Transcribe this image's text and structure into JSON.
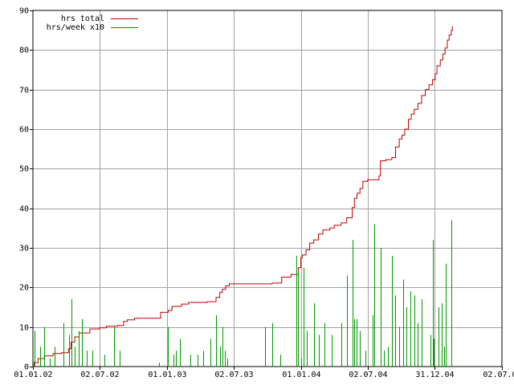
{
  "chart_data": {
    "type": "line",
    "title": "",
    "xlabel": "",
    "ylabel": "",
    "x_is_date": true,
    "x_tick_labels": [
      "01.01.02",
      "02.07.02",
      "01.01.03",
      "02.07.03",
      "01.01.04",
      "02.07.04",
      "31.12.04",
      "02.07.05"
    ],
    "x_tick_dates": [
      "2002-01-01",
      "2002-07-02",
      "2003-01-01",
      "2003-07-02",
      "2004-01-01",
      "2004-07-02",
      "2004-12-31",
      "2005-07-02"
    ],
    "xlim": [
      "2002-01-01",
      "2005-07-02"
    ],
    "ylim": [
      0,
      90
    ],
    "y_ticks": [
      0,
      10,
      20,
      30,
      40,
      50,
      60,
      70,
      80,
      90
    ],
    "grid": true,
    "legend_position": "top-left",
    "series": [
      {
        "name": "hrs total",
        "color": "#c00000",
        "style": "step",
        "points": [
          [
            "2002-01-01",
            0
          ],
          [
            "2002-01-04",
            1
          ],
          [
            "2002-01-15",
            2
          ],
          [
            "2002-02-01",
            2.7
          ],
          [
            "2002-02-25",
            3.3
          ],
          [
            "2002-03-20",
            3.5
          ],
          [
            "2002-04-08",
            4.5
          ],
          [
            "2002-04-15",
            6.2
          ],
          [
            "2002-04-25",
            7.5
          ],
          [
            "2002-05-07",
            8.5
          ],
          [
            "2002-06-05",
            9.5
          ],
          [
            "2002-07-01",
            9.8
          ],
          [
            "2002-07-20",
            10.2
          ],
          [
            "2002-08-20",
            10.4
          ],
          [
            "2002-09-05",
            11.4
          ],
          [
            "2002-09-15",
            11.8
          ],
          [
            "2002-10-05",
            12.2
          ],
          [
            "2002-12-15",
            13.7
          ],
          [
            "2003-01-05",
            14.2
          ],
          [
            "2003-01-15",
            15.2
          ],
          [
            "2003-02-10",
            15.8
          ],
          [
            "2003-03-01",
            16.2
          ],
          [
            "2003-04-20",
            16.4
          ],
          [
            "2003-05-15",
            17.5
          ],
          [
            "2003-05-25",
            18.7
          ],
          [
            "2003-06-01",
            19.5
          ],
          [
            "2003-06-10",
            20.4
          ],
          [
            "2003-06-20",
            20.9
          ],
          [
            "2003-10-15",
            21.1
          ],
          [
            "2003-11-10",
            22.6
          ],
          [
            "2003-12-05",
            23.3
          ],
          [
            "2003-12-25",
            25
          ],
          [
            "2004-01-01",
            27.5
          ],
          [
            "2004-01-05",
            28.2
          ],
          [
            "2004-01-15",
            29.5
          ],
          [
            "2004-01-25",
            31.2
          ],
          [
            "2004-02-05",
            32
          ],
          [
            "2004-02-18",
            33.5
          ],
          [
            "2004-03-01",
            34.5
          ],
          [
            "2004-03-20",
            35
          ],
          [
            "2004-04-01",
            35.7
          ],
          [
            "2004-04-20",
            36.3
          ],
          [
            "2004-05-05",
            37.6
          ],
          [
            "2004-05-20",
            40.2
          ],
          [
            "2004-05-26",
            42.5
          ],
          [
            "2004-06-02",
            43.8
          ],
          [
            "2004-06-10",
            45
          ],
          [
            "2004-06-18",
            46.8
          ],
          [
            "2004-07-01",
            47.2
          ],
          [
            "2004-08-01",
            48.2
          ],
          [
            "2004-08-05",
            52
          ],
          [
            "2004-08-20",
            52.3
          ],
          [
            "2004-09-05",
            52.8
          ],
          [
            "2004-09-15",
            55.5
          ],
          [
            "2004-09-25",
            57.5
          ],
          [
            "2004-10-03",
            58.5
          ],
          [
            "2004-10-10",
            60
          ],
          [
            "2004-10-20",
            62.5
          ],
          [
            "2004-10-28",
            63.8
          ],
          [
            "2004-11-05",
            65
          ],
          [
            "2004-11-15",
            66.5
          ],
          [
            "2004-11-25",
            68.5
          ],
          [
            "2004-12-05",
            70
          ],
          [
            "2004-12-15",
            71.2
          ],
          [
            "2004-12-25",
            72.5
          ],
          [
            "2005-01-01",
            74
          ],
          [
            "2005-01-06",
            76
          ],
          [
            "2005-01-15",
            77.5
          ],
          [
            "2005-01-22",
            79
          ],
          [
            "2005-01-28",
            80.5
          ],
          [
            "2005-02-03",
            82.5
          ],
          [
            "2005-02-08",
            83.8
          ],
          [
            "2005-02-14",
            85
          ],
          [
            "2005-02-17",
            86
          ]
        ]
      },
      {
        "name": "hrs/week x10",
        "color": "#009900",
        "style": "spikes",
        "points": [
          [
            "2002-01-05",
            9
          ],
          [
            "2002-01-20",
            5
          ],
          [
            "2002-02-01",
            10
          ],
          [
            "2002-02-15",
            2
          ],
          [
            "2002-03-01",
            5
          ],
          [
            "2002-03-25",
            11
          ],
          [
            "2002-04-10",
            8
          ],
          [
            "2002-04-15",
            17
          ],
          [
            "2002-04-25",
            5
          ],
          [
            "2002-05-05",
            9
          ],
          [
            "2002-05-15",
            12
          ],
          [
            "2002-05-28",
            4
          ],
          [
            "2002-06-12",
            4
          ],
          [
            "2002-07-15",
            3
          ],
          [
            "2002-08-10",
            10
          ],
          [
            "2002-08-25",
            4
          ],
          [
            "2002-12-10",
            1
          ],
          [
            "2003-01-03",
            10
          ],
          [
            "2003-01-20",
            3
          ],
          [
            "2003-01-25",
            4
          ],
          [
            "2003-02-05",
            7
          ],
          [
            "2003-03-05",
            3
          ],
          [
            "2003-03-25",
            3
          ],
          [
            "2003-04-10",
            4
          ],
          [
            "2003-04-30",
            7
          ],
          [
            "2003-05-15",
            13
          ],
          [
            "2003-05-25",
            5
          ],
          [
            "2003-06-01",
            10
          ],
          [
            "2003-06-08",
            4
          ],
          [
            "2003-06-15",
            2
          ],
          [
            "2003-09-25",
            10
          ],
          [
            "2003-10-15",
            11
          ],
          [
            "2003-11-05",
            3
          ],
          [
            "2003-12-20",
            28
          ],
          [
            "2003-12-24",
            24
          ],
          [
            "2004-01-01",
            2
          ],
          [
            "2004-01-08",
            25
          ],
          [
            "2004-01-18",
            9
          ],
          [
            "2004-02-05",
            16
          ],
          [
            "2004-02-18",
            8
          ],
          [
            "2004-03-05",
            11
          ],
          [
            "2004-03-25",
            8
          ],
          [
            "2004-04-20",
            11
          ],
          [
            "2004-05-05",
            23
          ],
          [
            "2004-05-20",
            32
          ],
          [
            "2004-05-25",
            12
          ],
          [
            "2004-06-01",
            12
          ],
          [
            "2004-06-10",
            9
          ],
          [
            "2004-06-25",
            4
          ],
          [
            "2004-07-15",
            13
          ],
          [
            "2004-07-20",
            36
          ],
          [
            "2004-08-05",
            30
          ],
          [
            "2004-08-15",
            4
          ],
          [
            "2004-08-25",
            5
          ],
          [
            "2004-09-05",
            28
          ],
          [
            "2004-09-15",
            18
          ],
          [
            "2004-09-25",
            10
          ],
          [
            "2004-10-05",
            22
          ],
          [
            "2004-10-15",
            15
          ],
          [
            "2004-10-25",
            19
          ],
          [
            "2004-11-05",
            18
          ],
          [
            "2004-11-15",
            11
          ],
          [
            "2004-11-25",
            17
          ],
          [
            "2004-12-20",
            8
          ],
          [
            "2004-12-26",
            32
          ],
          [
            "2004-12-29",
            7
          ],
          [
            "2005-01-10",
            15
          ],
          [
            "2005-01-18",
            16
          ],
          [
            "2005-01-25",
            5
          ],
          [
            "2005-01-30",
            26
          ],
          [
            "2005-02-15",
            37
          ]
        ]
      }
    ]
  }
}
